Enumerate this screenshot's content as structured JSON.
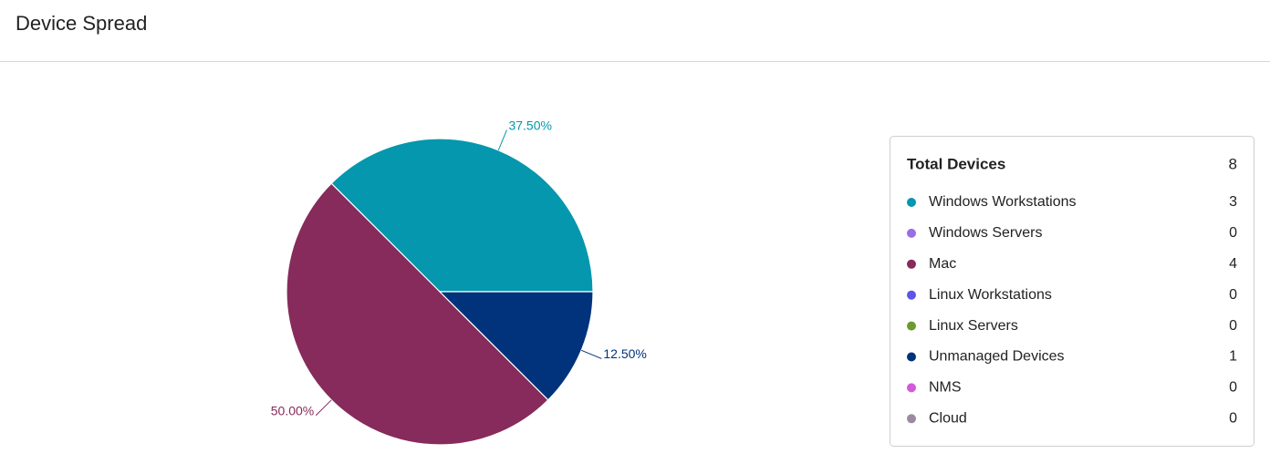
{
  "chart_data": {
    "type": "pie",
    "title": "Device Spread",
    "total_label": "Total Devices",
    "total": 8,
    "categories": [
      "Windows Workstations",
      "Windows Servers",
      "Mac",
      "Linux Workstations",
      "Linux Servers",
      "Unmanaged Devices",
      "NMS",
      "Cloud"
    ],
    "colors": [
      "#0497ad",
      "#9b6ce6",
      "#862b5b",
      "#5b55ea",
      "#6b9a2f",
      "#00337c",
      "#d35ad9",
      "#9b8ba1"
    ],
    "values": [
      3,
      0,
      4,
      0,
      0,
      1,
      0,
      0
    ],
    "percent_values": [
      37.5,
      null,
      50,
      null,
      null,
      12.5,
      null,
      null
    ],
    "percent_labels": [
      "37.50%",
      null,
      "50.00%",
      null,
      null,
      "12.50%",
      null,
      null
    ]
  }
}
